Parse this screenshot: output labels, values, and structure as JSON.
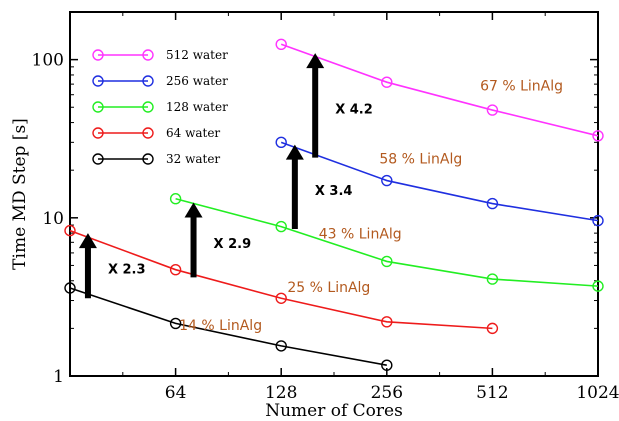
{
  "chart_data": {
    "type": "line",
    "title": "",
    "xlabel": "Numer of Cores",
    "ylabel": "Time MD Step [s]",
    "xscale": "log2",
    "yscale": "log10",
    "xlim": [
      32,
      1024
    ],
    "ylim": [
      1,
      200
    ],
    "xticks": [
      64,
      128,
      256,
      512,
      1024
    ],
    "xtick_labels": [
      "64",
      "128",
      "256",
      "512",
      "1024"
    ],
    "yticks": [
      1,
      10,
      100
    ],
    "ytick_labels": [
      "1",
      "10",
      "100"
    ],
    "legend_position": "top-left",
    "series": [
      {
        "name": "512 water",
        "color": "#ff33ff",
        "x": [
          128,
          256,
          512,
          1024
        ],
        "y": [
          125,
          72,
          48,
          33
        ]
      },
      {
        "name": "256 water",
        "color": "#1f2fe0",
        "x": [
          128,
          256,
          512,
          1024
        ],
        "y": [
          30,
          17.2,
          12.3,
          9.6
        ]
      },
      {
        "name": "128 water",
        "color": "#22ee22",
        "x": [
          64,
          128,
          256,
          512,
          1024
        ],
        "y": [
          13.2,
          8.8,
          5.3,
          4.1,
          3.7
        ]
      },
      {
        "name": "64 water",
        "color": "#ee1b1b",
        "x": [
          32,
          64,
          128,
          256,
          512
        ],
        "y": [
          8.3,
          4.7,
          3.1,
          2.2,
          2.0
        ]
      },
      {
        "name": "32 water",
        "color": "#000000",
        "x": [
          32,
          64,
          128,
          256
        ],
        "y": [
          3.6,
          2.15,
          1.55,
          1.17
        ]
      }
    ],
    "annotations": {
      "percentages": [
        {
          "text": "67 % LinAlg",
          "x": 620,
          "y": 64
        },
        {
          "text": "58 % LinAlg",
          "x": 320,
          "y": 22
        },
        {
          "text": "43 % LinAlg",
          "x": 215,
          "y": 7.4
        },
        {
          "text": "25 % LinAlg",
          "x": 175,
          "y": 3.4
        },
        {
          "text": "14 % LinAlg",
          "x": 86,
          "y": 1.95
        }
      ],
      "speedups": [
        {
          "text": "X 4.2",
          "x": 160,
          "y_from": 24,
          "y_to": 110
        },
        {
          "text": "X 3.4",
          "x": 140,
          "y_from": 8.5,
          "y_to": 29
        },
        {
          "text": "X 2.9",
          "x": 72,
          "y_from": 4.2,
          "y_to": 12.5
        },
        {
          "text": "X 2.3",
          "x": 36,
          "y_from": 3.1,
          "y_to": 8.0
        }
      ]
    }
  }
}
